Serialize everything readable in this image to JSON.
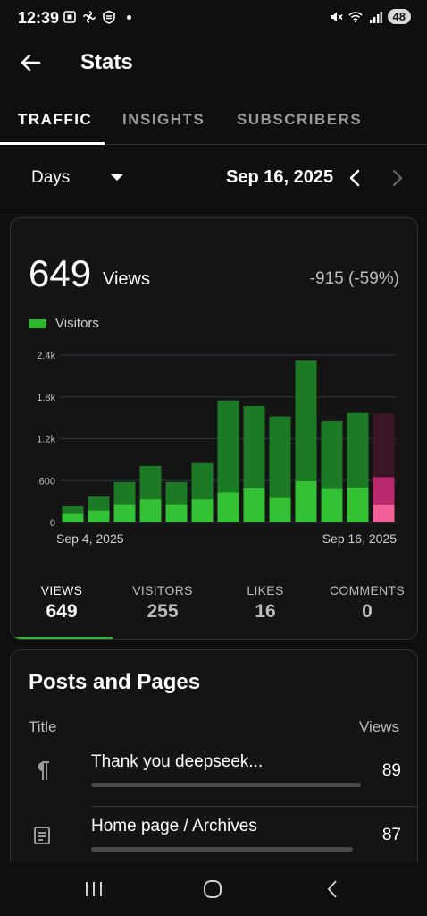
{
  "status": {
    "time": "12:39",
    "battery": "48",
    "icons_left": [
      "screenshot-icon",
      "fan-icon",
      "shield-icon"
    ],
    "icons_right": [
      "mute-icon",
      "wifi-icon",
      "signal-icon"
    ]
  },
  "app_bar": {
    "title": "Stats"
  },
  "tabs": [
    {
      "label": "TRAFFIC",
      "active": true
    },
    {
      "label": "INSIGHTS",
      "active": false
    },
    {
      "label": "SUBSCRIBERS",
      "active": false
    }
  ],
  "period": {
    "granularity": "Days",
    "date": "Sep 16, 2025"
  },
  "stats": {
    "views_count": "649",
    "views_label": "Views",
    "change": "-915 (-59%)",
    "legend_label": "Visitors"
  },
  "chart_data": {
    "type": "bar",
    "stacked_overlay": true,
    "y_ticks": [
      "0",
      "600",
      "1.2k",
      "1.8k",
      "2.4k"
    ],
    "ylim": [
      0,
      2400
    ],
    "x_start_label": "Sep 4, 2025",
    "x_end_label": "Sep 16, 2025",
    "dates": [
      "Sep 4",
      "Sep 5",
      "Sep 6",
      "Sep 7",
      "Sep 8",
      "Sep 9",
      "Sep 10",
      "Sep 11",
      "Sep 12",
      "Sep 13",
      "Sep 14",
      "Sep 15",
      "Sep 16"
    ],
    "series": [
      {
        "name": "Views",
        "values": [
          230,
          370,
          580,
          810,
          580,
          850,
          1750,
          1670,
          1520,
          2320,
          1450,
          1570,
          649
        ]
      },
      {
        "name": "Visitors",
        "values": [
          120,
          170,
          260,
          330,
          260,
          330,
          430,
          490,
          350,
          590,
          480,
          500,
          255
        ]
      }
    ],
    "highlight_previous_views": 1564,
    "colors": {
      "views": "#1c7a25",
      "visitors": "#33c233",
      "highlight_views": "#b82a6b",
      "highlight_visitors": "#f26099",
      "highlight_background": "#3a1626"
    },
    "grid": true
  },
  "metrics": [
    {
      "label": "VIEWS",
      "value": "649",
      "active": true
    },
    {
      "label": "VISITORS",
      "value": "255",
      "active": false
    },
    {
      "label": "LIKES",
      "value": "16",
      "active": false
    },
    {
      "label": "COMMENTS",
      "value": "0",
      "active": false
    }
  ],
  "posts": {
    "title": "Posts and Pages",
    "col_title": "Title",
    "col_views": "Views",
    "items": [
      {
        "icon": "paragraph-icon",
        "title": "Thank you deepseek...",
        "views": "89",
        "bar": 1.0
      },
      {
        "icon": "page-icon",
        "title": "Home page / Archives",
        "views": "87",
        "bar": 0.97
      }
    ]
  }
}
